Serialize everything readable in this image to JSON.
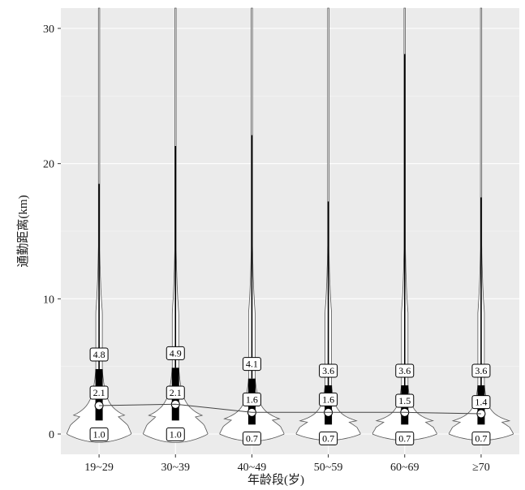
{
  "chart_data": {
    "type": "violin",
    "title": "",
    "xlabel": "年龄段(岁)",
    "ylabel": "通勤距离(km)",
    "ylim": [
      -1.5,
      31.5
    ],
    "yticks": [
      0,
      10,
      20,
      30
    ],
    "grid": true,
    "categories": [
      "19~29",
      "30~39",
      "40~49",
      "50~59",
      "60~69",
      "≥70"
    ],
    "q1": [
      1.0,
      1.0,
      0.7,
      0.7,
      0.7,
      0.7
    ],
    "median": [
      2.1,
      2.1,
      1.6,
      1.6,
      1.5,
      1.4
    ],
    "q3": [
      4.8,
      4.9,
      4.1,
      3.6,
      3.6,
      3.6
    ],
    "mean": [
      2.1,
      2.2,
      1.6,
      1.6,
      1.6,
      1.5
    ],
    "tail_max": [
      31.5,
      31.5,
      31.5,
      31.5,
      31.5,
      31.5
    ],
    "whisker_max": [
      18.5,
      21.3,
      22.1,
      17.2,
      28.1,
      17.5
    ],
    "colors": {
      "panel": "#ebebeb",
      "grid": "#ffffff",
      "violin_fill": "#ffffff",
      "box": "#000000"
    }
  }
}
